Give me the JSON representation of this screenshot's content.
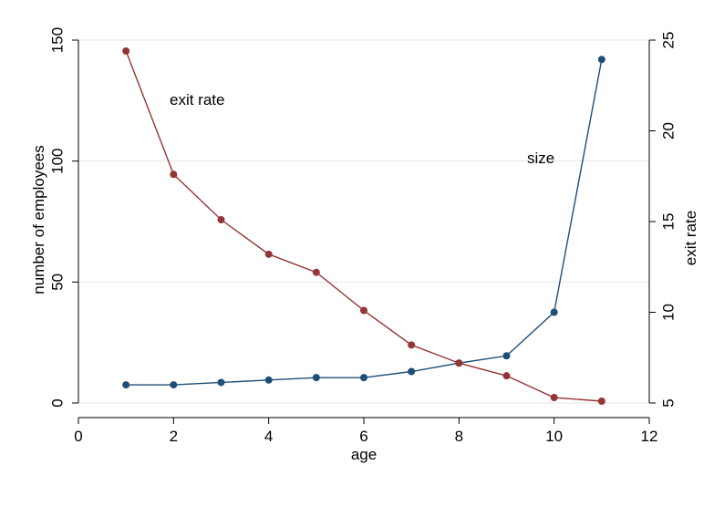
{
  "chart_data": {
    "type": "line",
    "title": "",
    "xlabel": "age",
    "ylabel_left": "number of employees",
    "ylabel_right": "exit rate",
    "xlim": [
      0,
      12
    ],
    "ylim_left": [
      0,
      150
    ],
    "ylim_right": [
      5,
      25
    ],
    "x_ticks": [
      0,
      2,
      4,
      6,
      8,
      10,
      12
    ],
    "y_left_ticks": [
      0,
      50,
      100,
      150
    ],
    "y_right_ticks": [
      5,
      10,
      15,
      20,
      25
    ],
    "grid": "horizontal",
    "x": [
      1,
      2,
      3,
      4,
      5,
      6,
      7,
      8,
      9,
      10,
      11
    ],
    "series": [
      {
        "name": "size",
        "axis": "left",
        "color": "#1f4e79",
        "values": [
          7.5,
          7.5,
          8.5,
          9.5,
          10.5,
          10.5,
          13,
          16.5,
          19.5,
          37.5,
          142
        ]
      },
      {
        "name": "exit rate",
        "axis": "right",
        "color": "#943537",
        "values": [
          24.4,
          17.6,
          15.1,
          13.2,
          12.2,
          10.1,
          8.2,
          7.2,
          6.5,
          5.3,
          5.1
        ]
      }
    ],
    "annotations": [
      {
        "text": "exit rate",
        "series": "exit rate"
      },
      {
        "text": "size",
        "series": "size"
      }
    ]
  }
}
